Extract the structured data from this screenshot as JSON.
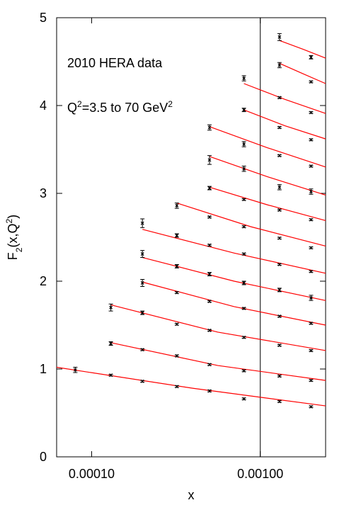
{
  "chart_data": {
    "type": "scatter",
    "annotations": [
      [
        {
          "text": "2010 HERA data"
        }
      ],
      [
        {
          "text": "Q"
        },
        {
          "text": "2",
          "script": "sup"
        },
        {
          "text": "=3.5 to 70 GeV"
        },
        {
          "text": "2",
          "script": "sup"
        }
      ]
    ],
    "xlabel": [
      {
        "text": "x"
      }
    ],
    "ylabel": [
      {
        "text": "F"
      },
      {
        "text": "2",
        "script": "sub"
      },
      {
        "text": "(x,Q"
      },
      {
        "text": "2",
        "script": "sup"
      },
      {
        "text": ")"
      }
    ],
    "xscale": "log",
    "xlim": [
      6.2e-05,
      0.00244
    ],
    "ylim": [
      0,
      5
    ],
    "xticks": [
      {
        "value": 0.0001,
        "label": "0.00010"
      },
      {
        "value": 0.001,
        "label": "0.00100"
      }
    ],
    "yticks": [
      0,
      1,
      2,
      3,
      4,
      5
    ],
    "vline": 0.001,
    "point_color": "#000000",
    "fit_color": "#ff0000",
    "series": [
      {
        "x": [
          8e-05,
          0.00013,
          0.0002,
          0.00032,
          0.0005,
          0.0008,
          0.0013,
          0.002
        ],
        "values": [
          0.99,
          0.93,
          0.86,
          0.8,
          0.75,
          0.66,
          0.63,
          0.57
        ],
        "errors": [
          0.03,
          0.01,
          0.01,
          0.01,
          0.01,
          0.01,
          0.01,
          0.01
        ],
        "fit_x": [
          6.2e-05,
          0.0004,
          0.00244
        ],
        "fit_values": [
          1.02,
          0.78,
          0.58
        ]
      },
      {
        "x": [
          0.00013,
          0.0002,
          0.00032,
          0.0005,
          0.0008,
          0.0013,
          0.002
        ],
        "values": [
          1.29,
          1.22,
          1.15,
          1.05,
          0.98,
          0.92,
          0.87
        ],
        "errors": [
          0.02,
          0.01,
          0.01,
          0.01,
          0.01,
          0.01,
          0.01
        ],
        "fit_x": [
          0.00013,
          0.00056,
          0.00244
        ],
        "fit_values": [
          1.3,
          1.04,
          0.87
        ]
      },
      {
        "x": [
          0.00013,
          0.0002,
          0.00032,
          0.0005,
          0.0008,
          0.0013,
          0.002
        ],
        "values": [
          1.7,
          1.64,
          1.51,
          1.44,
          1.36,
          1.27,
          1.21
        ],
        "errors": [
          0.04,
          0.02,
          0.01,
          0.01,
          0.01,
          0.01,
          0.01
        ],
        "fit_x": [
          0.00013,
          0.00056,
          0.00244
        ],
        "fit_values": [
          1.73,
          1.42,
          1.21
        ]
      },
      {
        "x": [
          0.0002,
          0.00032,
          0.0005,
          0.0008,
          0.0013,
          0.002
        ],
        "values": [
          1.98,
          1.87,
          1.77,
          1.69,
          1.6,
          1.52
        ],
        "errors": [
          0.04,
          0.01,
          0.01,
          0.01,
          0.01,
          0.01
        ],
        "fit_x": [
          0.0002,
          0.0007,
          0.00244
        ],
        "fit_values": [
          1.99,
          1.71,
          1.5
        ]
      },
      {
        "x": [
          0.0002,
          0.00032,
          0.0005,
          0.0008,
          0.0013,
          0.002
        ],
        "values": [
          2.31,
          2.17,
          2.08,
          1.98,
          1.9,
          1.81
        ],
        "errors": [
          0.04,
          0.02,
          0.02,
          0.02,
          0.02,
          0.03
        ],
        "fit_x": [
          0.0002,
          0.0007,
          0.00244
        ],
        "fit_values": [
          2.27,
          2.0,
          1.78
        ]
      },
      {
        "x": [
          0.0002,
          0.00032,
          0.0005,
          0.0008,
          0.0013,
          0.002
        ],
        "values": [
          2.66,
          2.52,
          2.41,
          2.31,
          2.19,
          2.11
        ],
        "errors": [
          0.05,
          0.02,
          0.01,
          0.01,
          0.01,
          0.01
        ],
        "fit_x": [
          0.0002,
          0.0007,
          0.00244
        ],
        "fit_values": [
          2.59,
          2.32,
          2.09
        ]
      },
      {
        "x": [
          0.00032,
          0.0005,
          0.0008,
          0.0013,
          0.002
        ],
        "values": [
          2.86,
          2.73,
          2.62,
          2.49,
          2.38
        ],
        "errors": [
          0.03,
          0.01,
          0.01,
          0.01,
          0.01
        ],
        "fit_x": [
          0.00032,
          0.00088,
          0.00244
        ],
        "fit_values": [
          2.89,
          2.62,
          2.4
        ]
      },
      {
        "x": [
          0.0005,
          0.0008,
          0.0013,
          0.002
        ],
        "values": [
          3.06,
          2.93,
          2.81,
          2.7
        ],
        "errors": [
          0.02,
          0.01,
          0.01,
          0.01
        ],
        "fit_x": [
          0.0005,
          0.0011,
          0.00244
        ],
        "fit_values": [
          3.07,
          2.87,
          2.69
        ]
      },
      {
        "x": [
          0.0005,
          0.0008,
          0.0013,
          0.002
        ],
        "values": [
          3.38,
          3.28,
          3.07,
          3.02
        ],
        "errors": [
          0.05,
          0.03,
          0.03,
          0.03
        ],
        "fit_x": [
          0.0005,
          0.0011,
          0.00244
        ],
        "fit_values": [
          3.42,
          3.19,
          2.98
        ]
      },
      {
        "x": [
          0.0005,
          0.0008,
          0.0013,
          0.002
        ],
        "values": [
          3.75,
          3.56,
          3.43,
          3.31
        ],
        "errors": [
          0.03,
          0.03,
          0.01,
          0.01
        ],
        "fit_x": [
          0.0005,
          0.0011,
          0.00244
        ],
        "fit_values": [
          3.76,
          3.52,
          3.3
        ]
      },
      {
        "x": [
          0.0008,
          0.0013,
          0.002
        ],
        "values": [
          3.95,
          3.75,
          3.61
        ],
        "errors": [
          0.02,
          0.01,
          0.01
        ],
        "fit_x": [
          0.0008,
          0.0014,
          0.00244
        ],
        "fit_values": [
          3.95,
          3.77,
          3.62
        ]
      },
      {
        "x": [
          0.0008,
          0.0013,
          0.002
        ],
        "values": [
          4.31,
          4.09,
          3.92
        ],
        "errors": [
          0.03,
          0.01,
          0.01
        ],
        "fit_x": [
          0.0008,
          0.0014,
          0.00244
        ],
        "fit_values": [
          4.25,
          4.07,
          3.91
        ]
      },
      {
        "x": [
          0.0013,
          0.002
        ],
        "values": [
          4.46,
          4.27
        ],
        "errors": [
          0.03,
          0.01
        ],
        "fit_x": [
          0.0013,
          0.0018,
          0.00244
        ],
        "fit_values": [
          4.48,
          4.36,
          4.25
        ]
      },
      {
        "x": [
          0.0013,
          0.002
        ],
        "values": [
          4.78,
          4.55
        ],
        "errors": [
          0.04,
          0.02
        ],
        "fit_x": [
          0.0013,
          0.0018,
          0.00244
        ],
        "fit_values": [
          4.74,
          4.64,
          4.54
        ]
      }
    ]
  }
}
